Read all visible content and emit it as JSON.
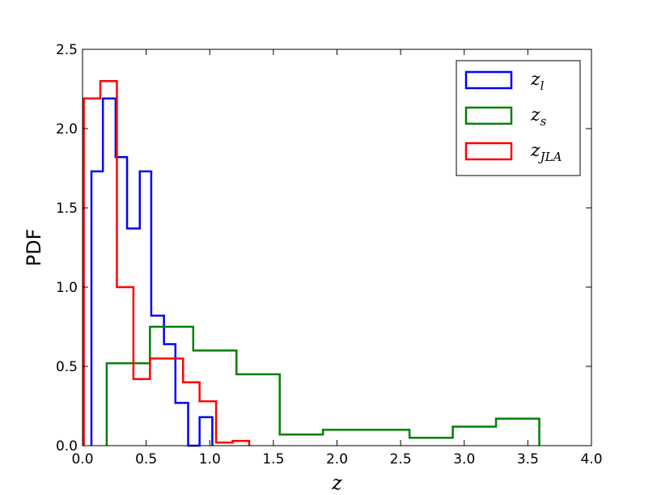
{
  "chart_data": {
    "type": "histogram",
    "xlabel": "z",
    "ylabel": "PDF",
    "xlim": [
      0.0,
      4.0
    ],
    "ylim": [
      0.0,
      2.5
    ],
    "x_ticks": [
      "0.0",
      "0.5",
      "1.0",
      "1.5",
      "2.0",
      "2.5",
      "3.0",
      "3.5",
      "4.0"
    ],
    "y_ticks": [
      "0.0",
      "0.5",
      "1.0",
      "1.5",
      "2.0",
      "2.5"
    ],
    "grid": false,
    "legend_position": "top-right",
    "series": [
      {
        "name": "z",
        "name_subscript": "l",
        "color": "#0000ff",
        "edges": [
          0.07,
          0.16,
          0.26,
          0.35,
          0.45,
          0.54,
          0.64,
          0.73,
          0.83,
          0.92,
          1.02
        ],
        "values": [
          1.73,
          2.19,
          1.82,
          1.37,
          1.73,
          0.82,
          0.64,
          0.27,
          0.0,
          0.18
        ]
      },
      {
        "name": "z",
        "name_subscript": "s",
        "color": "#008000",
        "edges": [
          0.19,
          0.53,
          0.87,
          1.21,
          1.55,
          1.89,
          2.23,
          2.57,
          2.91,
          3.25,
          3.59
        ],
        "values": [
          0.52,
          0.75,
          0.6,
          0.45,
          0.07,
          0.1,
          0.1,
          0.05,
          0.12,
          0.17
        ]
      },
      {
        "name": "z",
        "name_subscript": "JLA",
        "color": "#ff0000",
        "edges": [
          0.01,
          0.14,
          0.27,
          0.4,
          0.53,
          0.66,
          0.79,
          0.92,
          1.05,
          1.18,
          1.31
        ],
        "values": [
          2.19,
          2.3,
          1.0,
          0.42,
          0.55,
          0.55,
          0.4,
          0.28,
          0.02,
          0.03
        ]
      }
    ]
  }
}
